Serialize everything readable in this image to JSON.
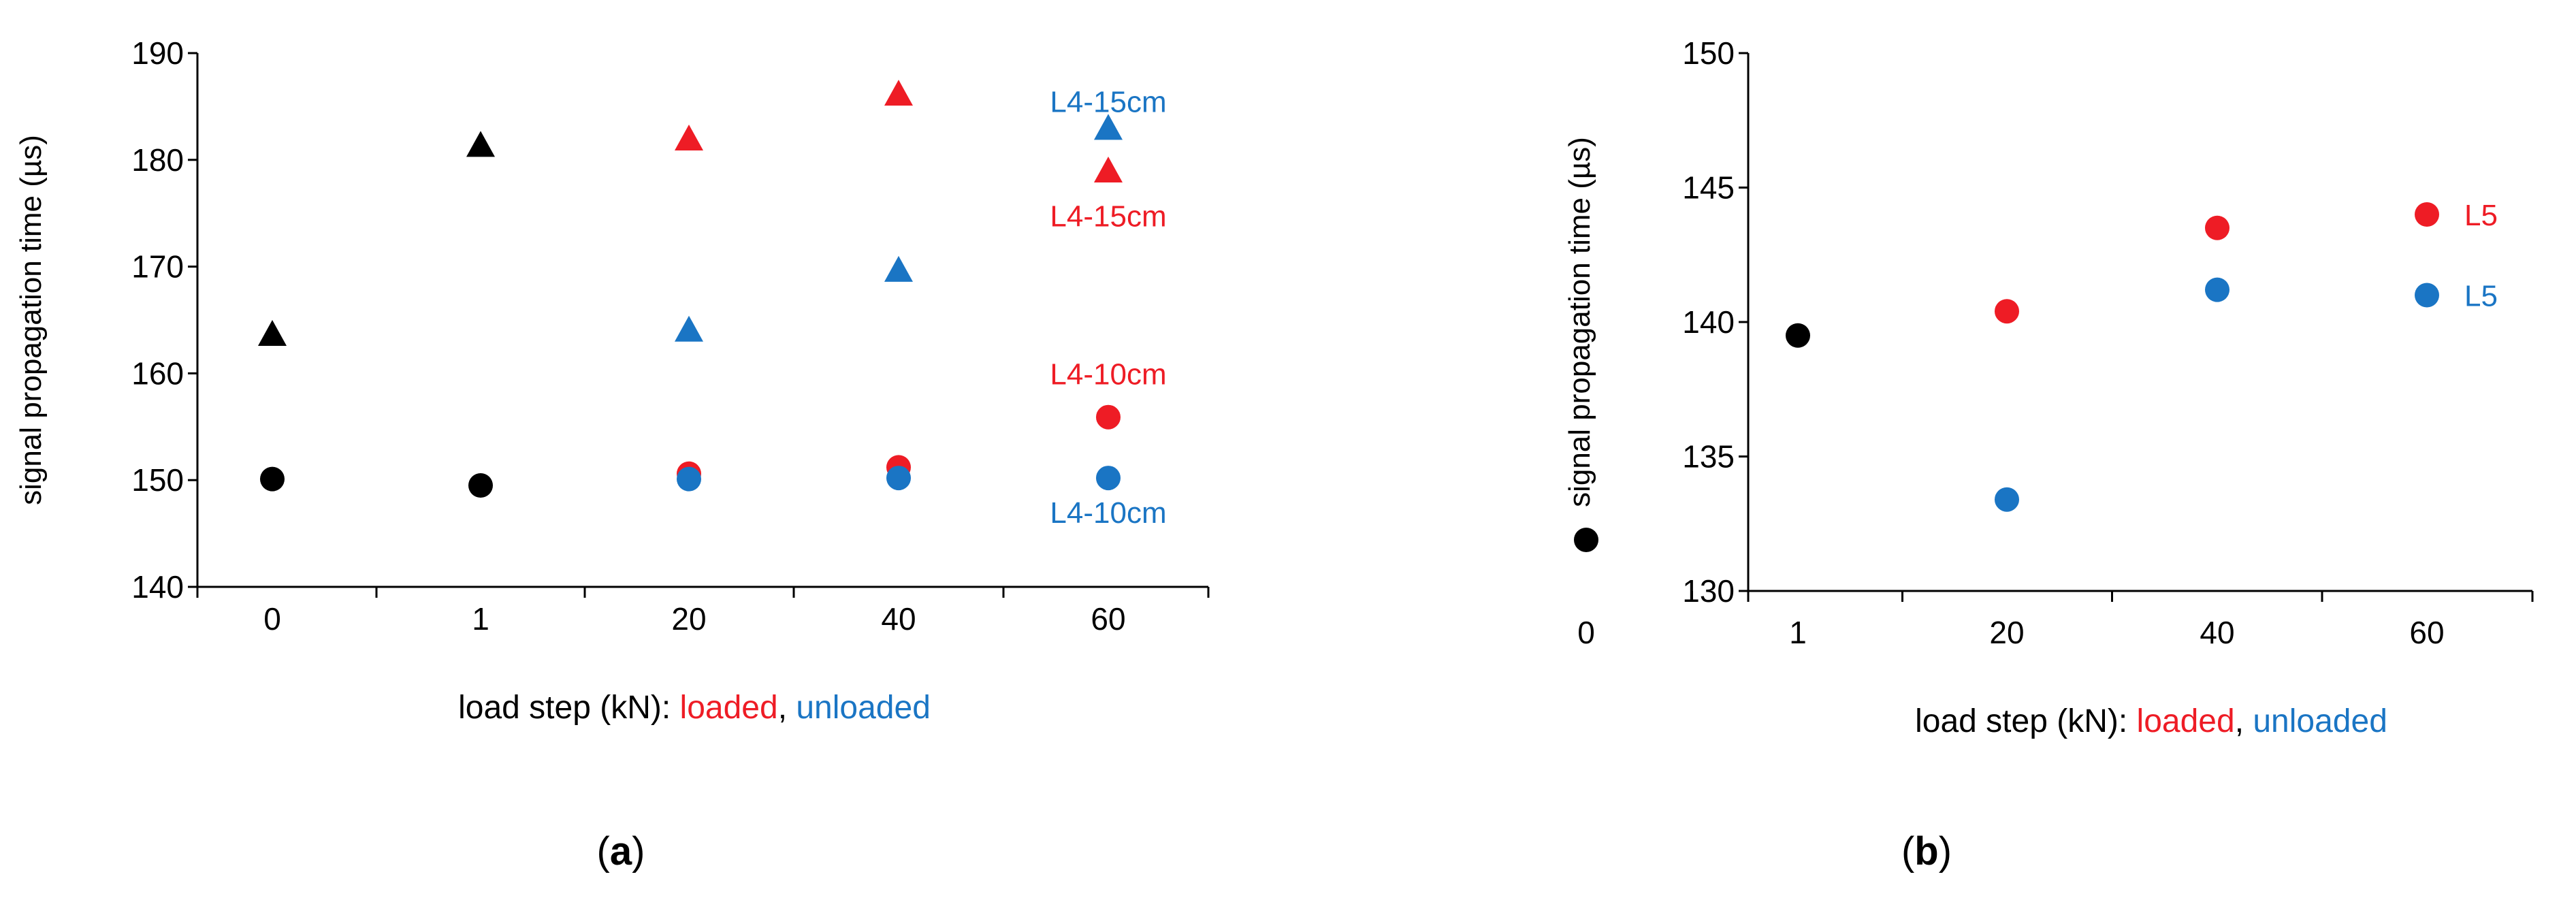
{
  "colors": {
    "loaded": "#ee1c25",
    "unloaded": "#1a75c4",
    "reference": "#000000",
    "axis": "#000000"
  },
  "chart_data": [
    {
      "type": "scatter",
      "panel": "a",
      "caption": "a",
      "ylabel": "signal propagation time (µs)",
      "xlabel_prefix": "load step (kN): ",
      "xlabel_loaded": "loaded",
      "xlabel_sep": ", ",
      "xlabel_unloaded": "unloaded",
      "categories": [
        "0",
        "1",
        "20",
        "40",
        "60"
      ],
      "ylim": [
        140,
        190
      ],
      "yticks": [
        140,
        150,
        160,
        170,
        180,
        190
      ],
      "series": [
        {
          "name": "reference triangle",
          "state": "reference",
          "marker": "triangle",
          "points": [
            [
              0,
              163.5
            ],
            [
              1,
              181.2
            ]
          ]
        },
        {
          "name": "reference circle",
          "state": "reference",
          "marker": "circle",
          "points": [
            [
              0,
              150.1
            ],
            [
              1,
              149.5
            ]
          ]
        },
        {
          "name": "L4-15cm loaded",
          "state": "loaded",
          "marker": "triangle",
          "points": [
            [
              2,
              181.8
            ],
            [
              3,
              186.0
            ],
            [
              4,
              178.8
            ]
          ]
        },
        {
          "name": "L4-15cm unloaded",
          "state": "unloaded",
          "marker": "triangle",
          "points": [
            [
              2,
              163.9
            ],
            [
              3,
              169.5
            ],
            [
              4,
              182.8
            ]
          ]
        },
        {
          "name": "L4-10cm loaded",
          "state": "loaded",
          "marker": "circle",
          "points": [
            [
              2,
              150.6
            ],
            [
              3,
              151.2
            ],
            [
              4,
              155.9
            ]
          ]
        },
        {
          "name": "L4-10cm unloaded",
          "state": "unloaded",
          "marker": "circle",
          "points": [
            [
              2,
              150.1
            ],
            [
              3,
              150.2
            ],
            [
              4,
              150.2
            ]
          ]
        }
      ],
      "annotations": [
        {
          "text": "L4-15cm",
          "state": "unloaded",
          "cat": 4,
          "y": 185.5
        },
        {
          "text": "L4-15cm",
          "state": "loaded",
          "cat": 4,
          "y": 174.8
        },
        {
          "text": "L4-10cm",
          "state": "loaded",
          "cat": 4,
          "y": 160.0
        },
        {
          "text": "L4-10cm",
          "state": "unloaded",
          "cat": 4,
          "y": 147.0
        }
      ]
    },
    {
      "type": "scatter",
      "panel": "b",
      "caption": "b",
      "ylabel": "signal propagation time (µs)",
      "xlabel_prefix": "load step (kN): ",
      "xlabel_loaded": "loaded",
      "xlabel_sep": ", ",
      "xlabel_unloaded": "unloaded",
      "categories": [
        "0",
        "1",
        "20",
        "40",
        "60"
      ],
      "ylim": [
        130,
        150
      ],
      "yticks": [
        130,
        135,
        140,
        145,
        150
      ],
      "series": [
        {
          "name": "reference",
          "state": "reference",
          "marker": "circle",
          "points": [
            [
              0,
              131.9
            ],
            [
              1,
              139.5
            ]
          ]
        },
        {
          "name": "L5 loaded",
          "state": "loaded",
          "marker": "circle",
          "points": [
            [
              2,
              140.4
            ],
            [
              3,
              143.5
            ],
            [
              4,
              144.0
            ]
          ]
        },
        {
          "name": "L5 unloaded",
          "state": "unloaded",
          "marker": "circle",
          "points": [
            [
              2,
              133.4
            ],
            [
              3,
              141.2
            ],
            [
              4,
              141.0
            ]
          ]
        }
      ],
      "annotations": [
        {
          "text": "L5",
          "state": "loaded",
          "cat": 4,
          "y": 144.0
        },
        {
          "text": "L5",
          "state": "unloaded",
          "cat": 4,
          "y": 141.0
        }
      ]
    }
  ]
}
